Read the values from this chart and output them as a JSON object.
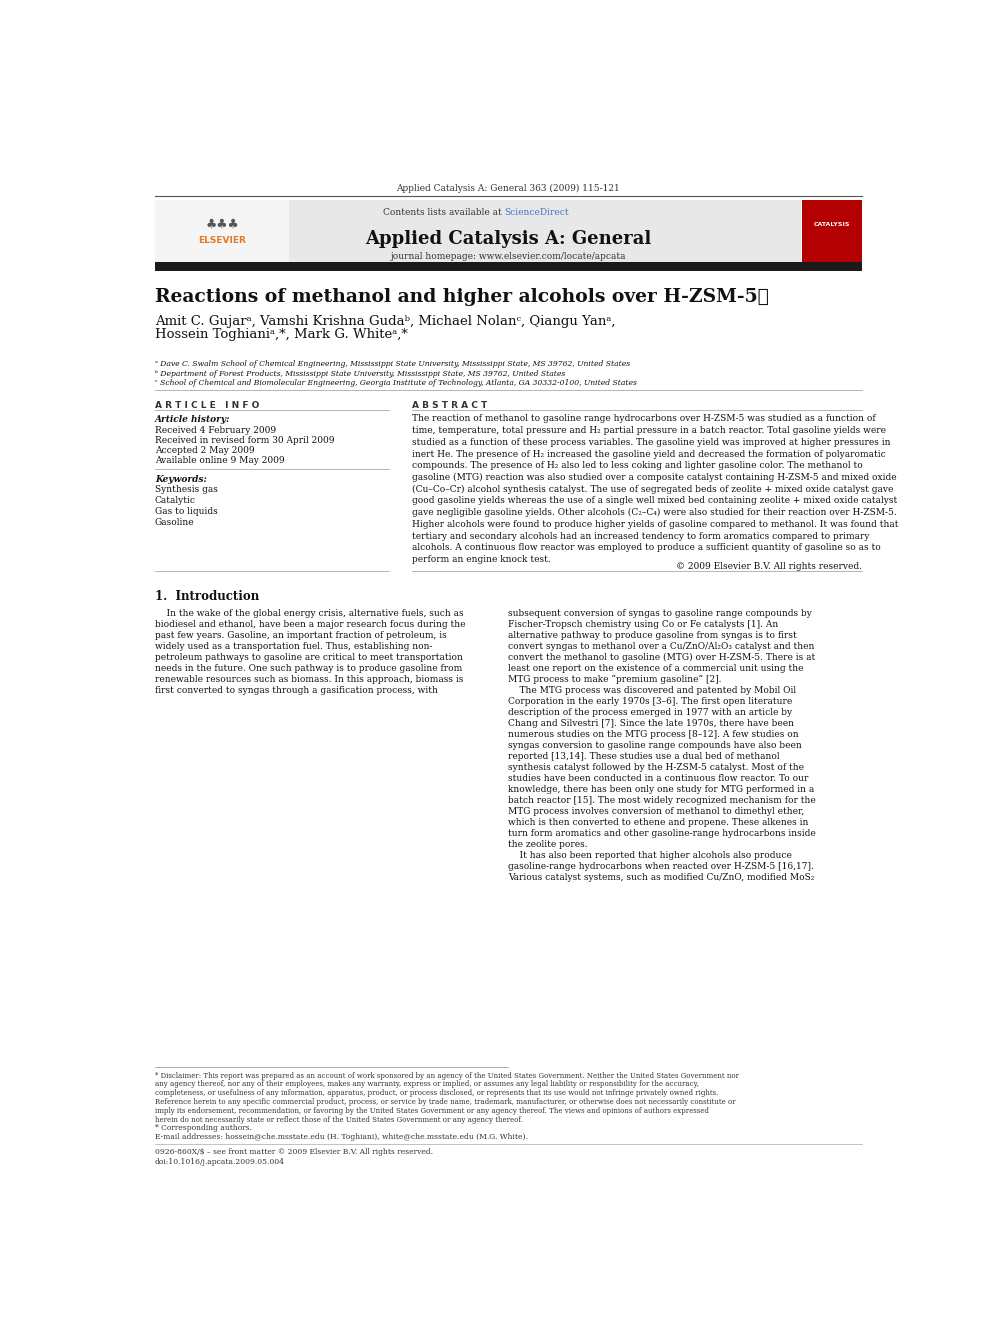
{
  "page_width": 9.92,
  "page_height": 13.23,
  "bg_color": "#ffffff",
  "header_journal_ref": "Applied Catalysis A: General 363 (2009) 115-121",
  "journal_name": "Applied Catalysis A: General",
  "journal_homepage": "journal homepage: www.elsevier.com/locate/apcata",
  "contents_text": "Contents lists available at ",
  "science_direct": "ScienceDirect",
  "header_bg": "#e8e8e8",
  "paper_title": "Reactions of methanol and higher alcohols over H-ZSM-5",
  "title_star": "★",
  "authors_line1": "Amit C. Gujarᵃ, Vamshi Krishna Gudaᵇ, Michael Nolanᶜ, Qiangu Yanᵃ,",
  "authors_line2": "Hossein Toghianiᵃ,*, Mark G. Whiteᵃ,*",
  "affil_a": "ᵃ Dave C. Swalm School of Chemical Engineering, Mississippi State University, Mississippi State, MS 39762, United States",
  "affil_b": "ᵇ Department of Forest Products, Mississippi State University, Mississippi State, MS 39762, United States",
  "affil_c": "ᶜ School of Chemical and Biomolecular Engineering, Georgia Institute of Technology, Atlanta, GA 30332-0100, United States",
  "article_info_title": "A R T I C L E   I N F O",
  "abstract_title": "A B S T R A C T",
  "article_history_label": "Article history:",
  "received": "Received 4 February 2009",
  "revised": "Received in revised form 30 April 2009",
  "accepted": "Accepted 2 May 2009",
  "available": "Available online 9 May 2009",
  "keywords_label": "Keywords:",
  "keywords": [
    "Synthesis gas",
    "Catalytic",
    "Gas to liquids",
    "Gasoline"
  ],
  "abstract_lines": [
    "The reaction of methanol to gasoline range hydrocarbons over H-ZSM-5 was studied as a function of",
    "time, temperature, total pressure and H₂ partial pressure in a batch reactor. Total gasoline yields were",
    "studied as a function of these process variables. The gasoline yield was improved at higher pressures in",
    "inert He. The presence of H₂ increased the gasoline yield and decreased the formation of polyaromatic",
    "compounds. The presence of H₂ also led to less coking and lighter gasoline color. The methanol to",
    "gasoline (MTG) reaction was also studied over a composite catalyst containing H-ZSM-5 and mixed oxide",
    "(Cu–Co–Cr) alcohol synthesis catalyst. The use of segregated beds of zeolite + mixed oxide catalyst gave",
    "good gasoline yields whereas the use of a single well mixed bed containing zeolite + mixed oxide catalyst",
    "gave negligible gasoline yields. Other alcohols (C₂–C₄) were also studied for their reaction over H-ZSM-5.",
    "Higher alcohols were found to produce higher yields of gasoline compared to methanol. It was found that",
    "tertiary and secondary alcohols had an increased tendency to form aromatics compared to primary",
    "alcohols. A continuous flow reactor was employed to produce a sufficient quantity of gasoline so as to",
    "perform an engine knock test."
  ],
  "copyright": "© 2009 Elsevier B.V. All rights reserved.",
  "intro_title": "1.  Introduction",
  "intro_col1_lines": [
    "    In the wake of the global energy crisis, alternative fuels, such as",
    "biodiesel and ethanol, have been a major research focus during the",
    "past few years. Gasoline, an important fraction of petroleum, is",
    "widely used as a transportation fuel. Thus, establishing non-",
    "petroleum pathways to gasoline are critical to meet transportation",
    "needs in the future. One such pathway is to produce gasoline from",
    "renewable resources such as biomass. In this approach, biomass is",
    "first converted to syngas through a gasification process, with"
  ],
  "intro_col2_lines": [
    "subsequent conversion of syngas to gasoline range compounds by",
    "Fischer-Tropsch chemistry using Co or Fe catalysts [1]. An",
    "alternative pathway to produce gasoline from syngas is to first",
    "convert syngas to methanol over a Cu/ZnO/Al₂O₃ catalyst and then",
    "convert the methanol to gasoline (MTG) over H-ZSM-5. There is at",
    "least one report on the existence of a commercial unit using the",
    "MTG process to make “premium gasoline” [2].",
    "    The MTG process was discovered and patented by Mobil Oil",
    "Corporation in the early 1970s [3–6]. The first open literature",
    "description of the process emerged in 1977 with an article by",
    "Chang and Silvestri [7]. Since the late 1970s, there have been",
    "numerous studies on the MTG process [8–12]. A few studies on",
    "syngas conversion to gasoline range compounds have also been",
    "reported [13,14]. These studies use a dual bed of methanol",
    "synthesis catalyst followed by the H-ZSM-5 catalyst. Most of the",
    "studies have been conducted in a continuous flow reactor. To our",
    "knowledge, there has been only one study for MTG performed in a",
    "batch reactor [15]. The most widely recognized mechanism for the",
    "MTG process involves conversion of methanol to dimethyl ether,",
    "which is then converted to ethene and propene. These alkenes in",
    "turn form aromatics and other gasoline-range hydrocarbons inside",
    "the zeolite pores.",
    "    It has also been reported that higher alcohols also produce",
    "gasoline-range hydrocarbons when reacted over H-ZSM-5 [16,17].",
    "Various catalyst systems, such as modified Cu/ZnO, modified MoS₂"
  ],
  "disclaimer_lines": [
    "* Disclaimer: This report was prepared as an account of work sponsored by an agency of the United States Government. Neither the United States Government nor",
    "any agency thereof, nor any of their employees, makes any warranty, express or implied, or assumes any legal liability or responsibility for the accuracy,",
    "completeness, or usefulness of any information, apparatus, product, or process disclosed, or represents that its use would not infringe privately owned rights.",
    "Reference herein to any specific commercial product, process, or service by trade name, trademark, manufacturer, or otherwise does not necessarily constitute or",
    "imply its endorsement, recommendation, or favoring by the United States Government or any agency thereof. The views and opinions of authors expressed",
    "herein do not necessarily state or reflect those of the United States Government or any agency thereof."
  ],
  "corresponding_note": "* Corresponding authors.",
  "email_note": "E-mail addresses: hossein@che.msstate.edu (H. Toghiani), white@che.msstate.edu (M.G. White).",
  "issn_text": "0926-860X/$ – see front matter © 2009 Elsevier B.V. All rights reserved.",
  "doi_text": "doi:10.1016/j.apcata.2009.05.004",
  "orange_color": "#e87722",
  "link_color": "#4472c4"
}
